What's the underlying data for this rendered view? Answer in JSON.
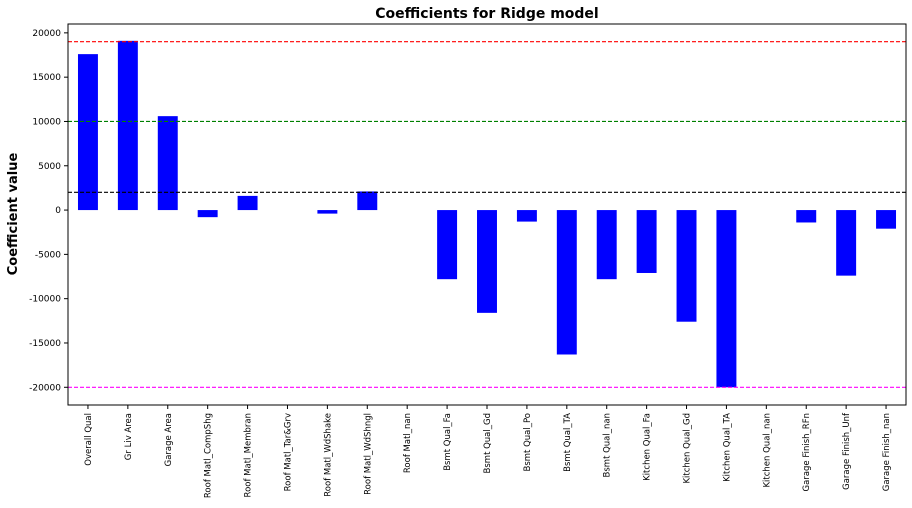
{
  "chart_data": {
    "type": "bar",
    "title": "Coefficients for Ridge model",
    "xlabel": "",
    "ylabel": "Coefficient value",
    "ylim": [
      -22000,
      21000
    ],
    "yticks": [
      20000,
      15000,
      10000,
      5000,
      0,
      -5000,
      -10000,
      -15000,
      -20000
    ],
    "grid": false,
    "legend": "none",
    "bar_color": "#0000ff",
    "categories": [
      "Overall Qual",
      "Gr Liv Area",
      "Garage Area",
      "Roof Matl_CompShg",
      "Roof Matl_Membran",
      "Roof Matl_Tar&Grv",
      "Roof Matl_WdShake",
      "Roof Matl_WdShngl",
      "Roof Matl_nan",
      "Bsmt Qual_Fa",
      "Bsmt Qual_Gd",
      "Bsmt Qual_Po",
      "Bsmt Qual_TA",
      "Bsmt Qual_nan",
      "Kitchen Qual_Fa",
      "Kitchen Qual_Gd",
      "Kitchen Qual_TA",
      "Kitchen Qual_nan",
      "Garage Finish_RFn",
      "Garage Finish_Unf",
      "Garage Finish_nan"
    ],
    "values": [
      17600,
      19100,
      10600,
      -800,
      1600,
      0,
      -400,
      2100,
      0,
      -7800,
      -11600,
      -1300,
      -16300,
      -7800,
      -7100,
      -12600,
      -20000,
      0,
      -1400,
      -7400,
      -2100
    ],
    "reference_lines": [
      {
        "y": 19000,
        "color": "#ff0000",
        "style": "dashed"
      },
      {
        "y": 10000,
        "color": "#008000",
        "style": "dashed"
      },
      {
        "y": 2000,
        "color": "#000000",
        "style": "dashed"
      },
      {
        "y": -20000,
        "color": "#ff00ff",
        "style": "dashed"
      }
    ]
  }
}
